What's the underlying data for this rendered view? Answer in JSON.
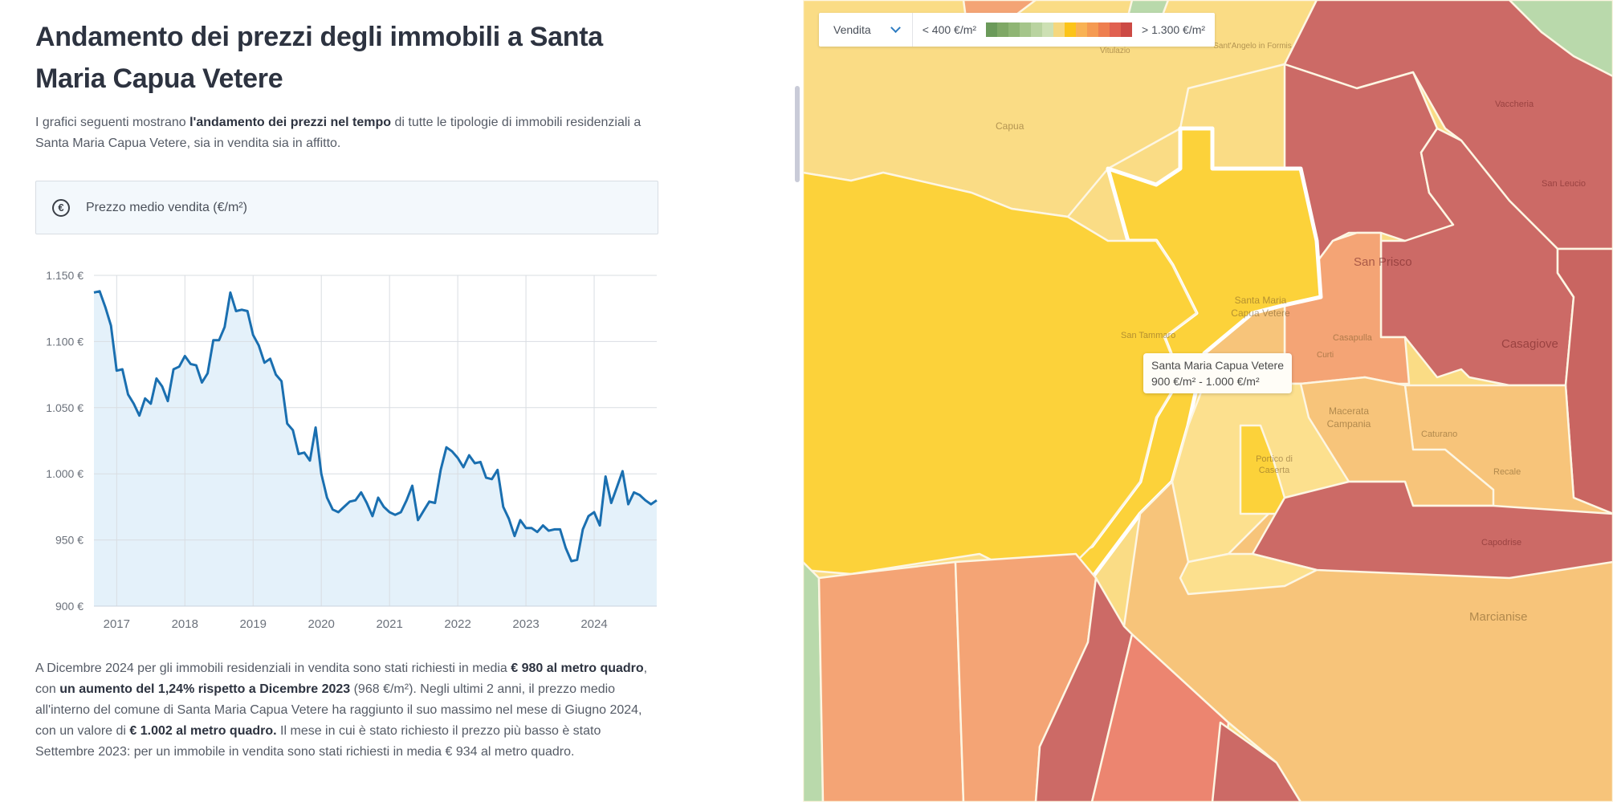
{
  "page": {
    "title": "Andamento dei prezzi degli immobili a Santa Maria Capua Vetere",
    "intro": {
      "part1": "I grafici seguenti mostrano ",
      "bold1": "l'andamento dei prezzi nel tempo",
      "part2": " di tutte le tipologie di immobili residenziali a Santa Maria Capua Vetere, sia in vendita sia in affitto."
    },
    "chart_header": {
      "icon": "euro-circle-icon",
      "label": "Prezzo medio vendita (€/m²)"
    },
    "summary": {
      "t1": "A Dicembre 2024 per gli immobili residenziali in vendita sono stati richiesti in media ",
      "b1": "€ 980 al metro quadro",
      "t2": ", con ",
      "b2": "un aumento del 1,24% rispetto a Dicembre 2023",
      "t3": " (968 €/m²). Negli ultimi 2 anni, il prezzo medio all'interno del comune di Santa Maria Capua Vetere ha raggiunto il suo massimo nel mese di Giugno 2024, con un valore di ",
      "b3": "€ 1.002 al metro quadro.",
      "t4": " Il mese in cui è stato richiesto il prezzo più basso è stato Settembre 2023: per un immobile in vendita sono stati richiesti in media € 934 al metro quadro."
    }
  },
  "chart_data": {
    "type": "area",
    "title": "Prezzo medio vendita (€/m²)",
    "xlabel": "",
    "ylabel": "",
    "x_start": "2016-09",
    "x_end": "2024-12",
    "x_ticks": [
      "2017",
      "2018",
      "2019",
      "2020",
      "2021",
      "2022",
      "2023",
      "2024"
    ],
    "y_ticks": [
      "900 €",
      "950 €",
      "1.000 €",
      "1.050 €",
      "1.100 €",
      "1.150 €"
    ],
    "y_tick_values": [
      900,
      950,
      1000,
      1050,
      1100,
      1150
    ],
    "ylim": [
      900,
      1150
    ],
    "grid": true,
    "colors": {
      "line": "#1a6fb0",
      "fill": "#e1eff9",
      "grid": "#d9dde2"
    },
    "series": [
      {
        "name": "Prezzo medio vendita",
        "values": [
          1137,
          1138,
          1126,
          1112,
          1078,
          1079,
          1060,
          1053,
          1044,
          1057,
          1053,
          1072,
          1066,
          1055,
          1079,
          1081,
          1089,
          1083,
          1082,
          1069,
          1076,
          1101,
          1101,
          1111,
          1137,
          1123,
          1124,
          1123,
          1105,
          1097,
          1084,
          1087,
          1075,
          1070,
          1038,
          1033,
          1015,
          1016,
          1010,
          1035,
          1000,
          982,
          973,
          971,
          975,
          979,
          980,
          986,
          978,
          968,
          982,
          975,
          971,
          969,
          971,
          980,
          991,
          965,
          972,
          979,
          978,
          1003,
          1020,
          1017,
          1012,
          1005,
          1014,
          1008,
          1009,
          997,
          996,
          1003,
          975,
          966,
          953,
          965,
          959,
          959,
          956,
          961,
          957,
          958,
          958,
          944,
          934,
          935,
          958,
          968,
          971,
          961,
          998,
          978,
          990,
          1002,
          977,
          986,
          984,
          980,
          977,
          980
        ]
      }
    ]
  },
  "map": {
    "mode_select": {
      "value": "Vendita",
      "icon": "chevron-down-icon"
    },
    "legend": {
      "min_label": "< 400 €/m²",
      "max_label": "> 1.300 €/m²",
      "colors": [
        "#6b9a5a",
        "#7fa866",
        "#8fb574",
        "#a5c58b",
        "#b9d3a0",
        "#cde0b4",
        "#f5d77e",
        "#fcc419",
        "#f9b254",
        "#f59a52",
        "#ee7e4f",
        "#e06050",
        "#cc4a45"
      ]
    },
    "tooltip": {
      "name": "Santa Maria Capua Vetere",
      "range": "900 €/m² - 1.000 €/m²"
    },
    "labels": [
      "Capua",
      "Vitulazio",
      "Sant'Angelo in Formis",
      "Vaccheria",
      "San Leucio",
      "San Prisco",
      "Santa Maria Capua Vetere",
      "San Tammaro",
      "Curti",
      "Casapulla",
      "Casagiove",
      "Macerata Campania",
      "Caturano",
      "Portico di Caserta",
      "Recale",
      "Capodrise",
      "Marcianise"
    ],
    "colors": {
      "light_yellow": "#fadc85",
      "yellow": "#fcd23a",
      "pale": "#fce08e",
      "light_orange": "#f7c47a",
      "orange": "#f4a475",
      "salmon": "#ec8570",
      "red": "#cc6a66",
      "green": "#b9d9ab"
    }
  }
}
